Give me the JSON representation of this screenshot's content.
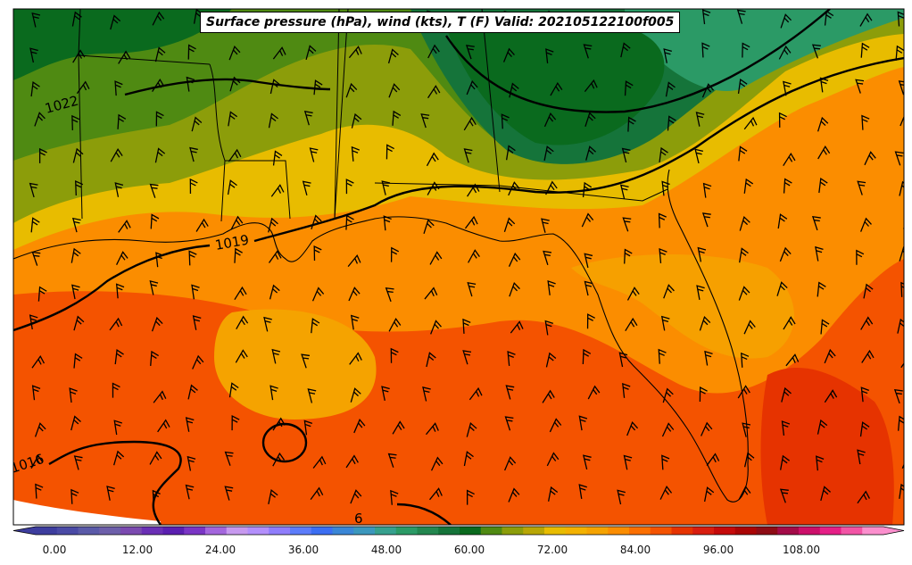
{
  "title": "Surface pressure (hPa), wind (kts), T (F) Valid: 202105122100f005",
  "isobar_labels": [
    "1022",
    "1019",
    "1016",
    "6"
  ],
  "colorbar": {
    "tick_labels": [
      "0.00",
      "12.00",
      "24.00",
      "36.00",
      "48.00",
      "60.00",
      "72.00",
      "84.00",
      "96.00",
      "108.00"
    ],
    "colors": [
      "#3d3d9e",
      "#4a4aa5",
      "#5a5aa8",
      "#6d5faa",
      "#7b4ab0",
      "#6a2fb5",
      "#5a1fb0",
      "#7a35c5",
      "#a366dd",
      "#c799ef",
      "#b38ffb",
      "#8f7dfb",
      "#5c7cfa",
      "#3b6ef2",
      "#3a86d6",
      "#3b97bd",
      "#36a08e",
      "#2b9a66",
      "#23874f",
      "#15743a",
      "#0a6a1e",
      "#4f8a12",
      "#8c9d0a",
      "#b8a605",
      "#e8bc00",
      "#f3b200",
      "#f5a300",
      "#fb8d00",
      "#fb6f00",
      "#f45300",
      "#e63300",
      "#d81d0f",
      "#c50a0a",
      "#aa0505",
      "#8e0c15",
      "#a30b48",
      "#cc0f6a",
      "#e51f86",
      "#f254a5",
      "#fb8fcd"
    ]
  }
}
